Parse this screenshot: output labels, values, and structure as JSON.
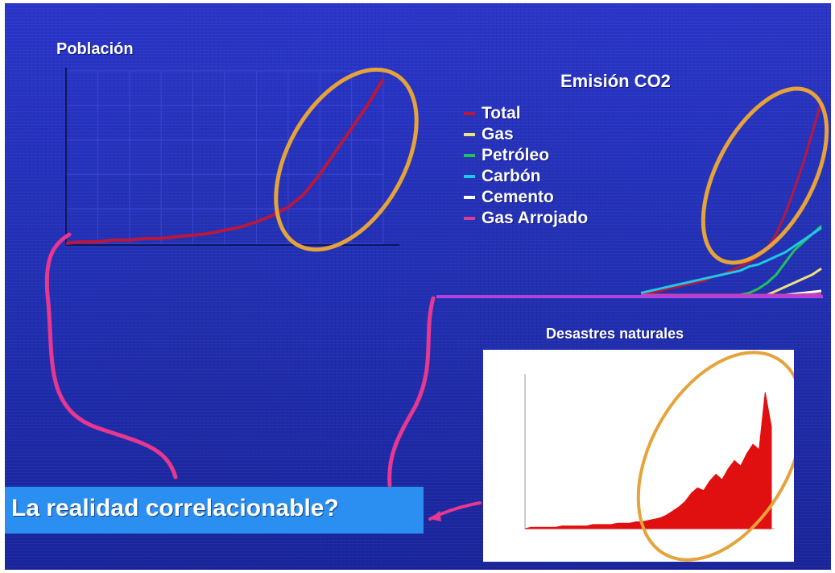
{
  "slide": {
    "question": "La realidad correlacionable?",
    "colors": {
      "background": "#2230b4",
      "ellipse": "#e5a33a",
      "connector": "#e8378e",
      "question_box": "#2a8ff0"
    }
  },
  "chart_data": [
    {
      "type": "line",
      "title": "Población",
      "x": [
        0,
        1,
        2,
        3,
        4,
        5,
        6,
        7,
        8,
        9,
        10,
        11,
        12,
        13,
        14,
        15,
        16,
        17,
        18,
        19,
        20
      ],
      "series": [
        {
          "values": [
            0.0,
            0.1,
            0.1,
            0.2,
            0.2,
            0.3,
            0.3,
            0.4,
            0.5,
            0.6,
            0.8,
            1.0,
            1.3,
            1.7,
            2.2,
            3.0,
            4.2,
            5.6,
            7.0,
            8.4,
            10.0
          ],
          "color": "#b8173e"
        }
      ],
      "xlim": [
        0,
        20
      ],
      "ylim": [
        0,
        10.5
      ],
      "grid": true,
      "highlight_ellipse": true
    },
    {
      "type": "line",
      "title": "Emisión CO2",
      "x": [
        0,
        1,
        2,
        3,
        4,
        5,
        6,
        7,
        8,
        9,
        10,
        11,
        12,
        13,
        14,
        15,
        16,
        17,
        18,
        19,
        20
      ],
      "series": [
        {
          "name": "Total",
          "color": "#b8173e",
          "values": [
            0.1,
            0.1,
            0.2,
            0.3,
            0.4,
            0.5,
            0.6,
            0.7,
            0.9,
            1.0,
            1.2,
            1.4,
            1.6,
            1.9,
            2.3,
            3.0,
            4.0,
            5.2,
            6.5,
            8.0,
            9.5
          ]
        },
        {
          "name": "Gas",
          "color": "#f0e080",
          "values": [
            0,
            0,
            0,
            0,
            0,
            0,
            0,
            0,
            0,
            0,
            0,
            0,
            0,
            0,
            0,
            0.2,
            0.4,
            0.6,
            0.8,
            1.0,
            1.3
          ]
        },
        {
          "name": "Petróleo",
          "color": "#20c060",
          "values": [
            0,
            0,
            0,
            0,
            0,
            0,
            0,
            0,
            0,
            0,
            0,
            0,
            0.1,
            0.3,
            0.6,
            1.0,
            1.6,
            2.2,
            2.6,
            3.0,
            3.4
          ]
        },
        {
          "name": "Carbón",
          "color": "#20c8e8",
          "values": [
            0.1,
            0.2,
            0.3,
            0.4,
            0.5,
            0.6,
            0.7,
            0.8,
            0.9,
            1.0,
            1.1,
            1.2,
            1.4,
            1.5,
            1.7,
            1.9,
            2.1,
            2.4,
            2.7,
            3.0,
            3.3
          ]
        },
        {
          "name": "Cemento",
          "color": "#ffffff",
          "values": [
            0,
            0,
            0,
            0,
            0,
            0,
            0,
            0,
            0,
            0,
            0,
            0,
            0,
            0,
            0,
            0,
            0,
            0.05,
            0.1,
            0.15,
            0.2
          ]
        },
        {
          "name": "Gas Arrojado",
          "color": "#d4409a",
          "values": [
            0,
            0,
            0,
            0,
            0,
            0,
            0,
            0,
            0,
            0,
            0,
            0,
            0,
            0,
            0,
            0,
            0,
            0,
            0.02,
            0.03,
            0.05
          ]
        }
      ],
      "xlim": [
        0,
        20
      ],
      "ylim": [
        0,
        10
      ],
      "legend": "top-left",
      "highlight_ellipse": true
    },
    {
      "type": "area",
      "title": "Desastres naturales",
      "x": [
        0,
        1,
        2,
        3,
        4,
        5,
        6,
        7,
        8,
        9,
        10,
        11,
        12,
        13,
        14,
        15,
        16,
        17,
        18,
        19,
        20,
        21,
        22,
        23,
        24,
        25,
        26,
        27,
        28,
        29,
        30,
        31,
        32,
        33,
        34,
        35,
        36,
        37,
        38,
        39,
        40
      ],
      "series": [
        {
          "color": "#e01010",
          "values": [
            0.0,
            0.1,
            0.1,
            0.1,
            0.1,
            0.1,
            0.2,
            0.2,
            0.2,
            0.2,
            0.2,
            0.3,
            0.3,
            0.3,
            0.3,
            0.4,
            0.4,
            0.4,
            0.5,
            0.5,
            0.6,
            0.7,
            0.8,
            1.0,
            1.3,
            1.6,
            2.0,
            2.6,
            3.0,
            2.8,
            3.5,
            4.0,
            3.6,
            4.4,
            5.0,
            4.6,
            5.5,
            6.2,
            5.8,
            10.0,
            7.5
          ]
        }
      ],
      "xlim": [
        0,
        40
      ],
      "ylim": [
        0,
        11
      ],
      "highlight_ellipse": true
    }
  ]
}
